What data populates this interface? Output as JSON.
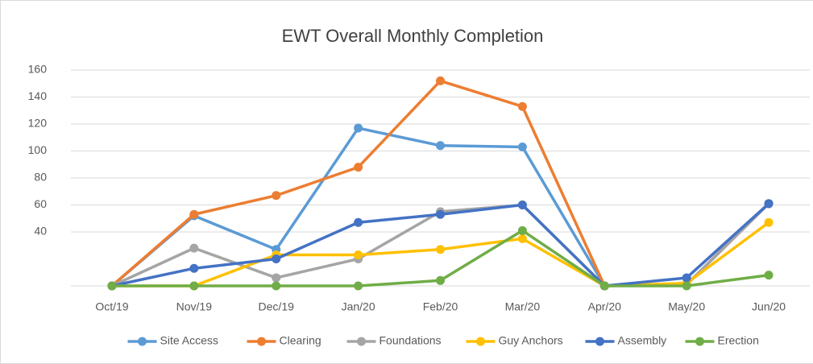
{
  "chart_data": {
    "type": "line",
    "title": "EWT Overall Monthly Completion",
    "categories": [
      "Oct/19",
      "Nov/19",
      "Dec/19",
      "Jan/20",
      "Feb/20",
      "Mar/20",
      "Apr/20",
      "May/20",
      "Jun/20"
    ],
    "series": [
      {
        "name": "Site Access",
        "color": "#5b9bd5",
        "values": [
          0,
          52,
          27,
          117,
          104,
          103,
          0,
          1,
          61
        ]
      },
      {
        "name": "Clearing",
        "color": "#ed7d31",
        "values": [
          0,
          53,
          67,
          88,
          152,
          133,
          0,
          1,
          61
        ]
      },
      {
        "name": "Foundations",
        "color": "#a5a5a5",
        "values": [
          0,
          28,
          6,
          20,
          55,
          60,
          0,
          1,
          61
        ]
      },
      {
        "name": "Guy Anchors",
        "color": "#ffc000",
        "values": [
          0,
          0,
          23,
          23,
          27,
          35,
          0,
          2,
          47
        ]
      },
      {
        "name": "Assembly",
        "color": "#4472c4",
        "values": [
          0,
          13,
          20,
          47,
          53,
          60,
          0,
          6,
          61
        ]
      },
      {
        "name": "Erection",
        "color": "#70ad47",
        "values": [
          0,
          0,
          0,
          0,
          4,
          41,
          0,
          0,
          8
        ]
      }
    ],
    "ylim": [
      0,
      160
    ],
    "yticks": [
      40,
      60,
      80,
      100,
      120,
      140,
      160
    ],
    "grid": true,
    "legend": "bottom"
  }
}
